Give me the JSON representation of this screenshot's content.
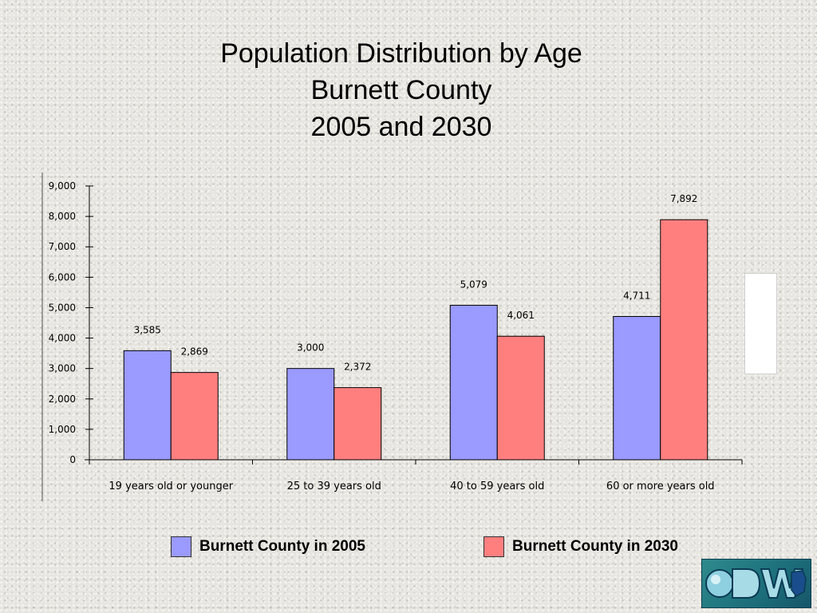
{
  "title": {
    "line1": "Population Distribution by Age",
    "line2": "Burnett County",
    "line3": "2005 and 2030"
  },
  "chart_data": {
    "type": "bar",
    "title": "Population Distribution by Age Burnett County 2005 and 2030",
    "xlabel": "",
    "ylabel": "",
    "ylim": [
      0,
      9000
    ],
    "yticks": [
      0,
      1000,
      2000,
      3000,
      4000,
      5000,
      6000,
      7000,
      8000,
      9000
    ],
    "ytick_labels": [
      "0",
      "1,000",
      "2,000",
      "3,000",
      "4,000",
      "5,000",
      "6,000",
      "7,000",
      "8,000",
      "9,000"
    ],
    "categories": [
      "19 years old or younger",
      "25 to 39 years old",
      "40 to 59 years old",
      "60 or more years old"
    ],
    "series": [
      {
        "name": "Burnett County in 2005",
        "color": "#9a9aff",
        "values": [
          3585,
          3000,
          5079,
          4711
        ],
        "labels": [
          "3,585",
          "3,000",
          "5,079",
          "4,711"
        ]
      },
      {
        "name": "Burnett County in 2030",
        "color": "#ff7f7f",
        "values": [
          2869,
          2372,
          4061,
          7892
        ],
        "labels": [
          "2,869",
          "2,372",
          "4,061",
          "7,892"
        ]
      }
    ],
    "grid": false,
    "legend_position": "bottom"
  },
  "logo": {
    "icon": "dwd-logo-icon"
  }
}
